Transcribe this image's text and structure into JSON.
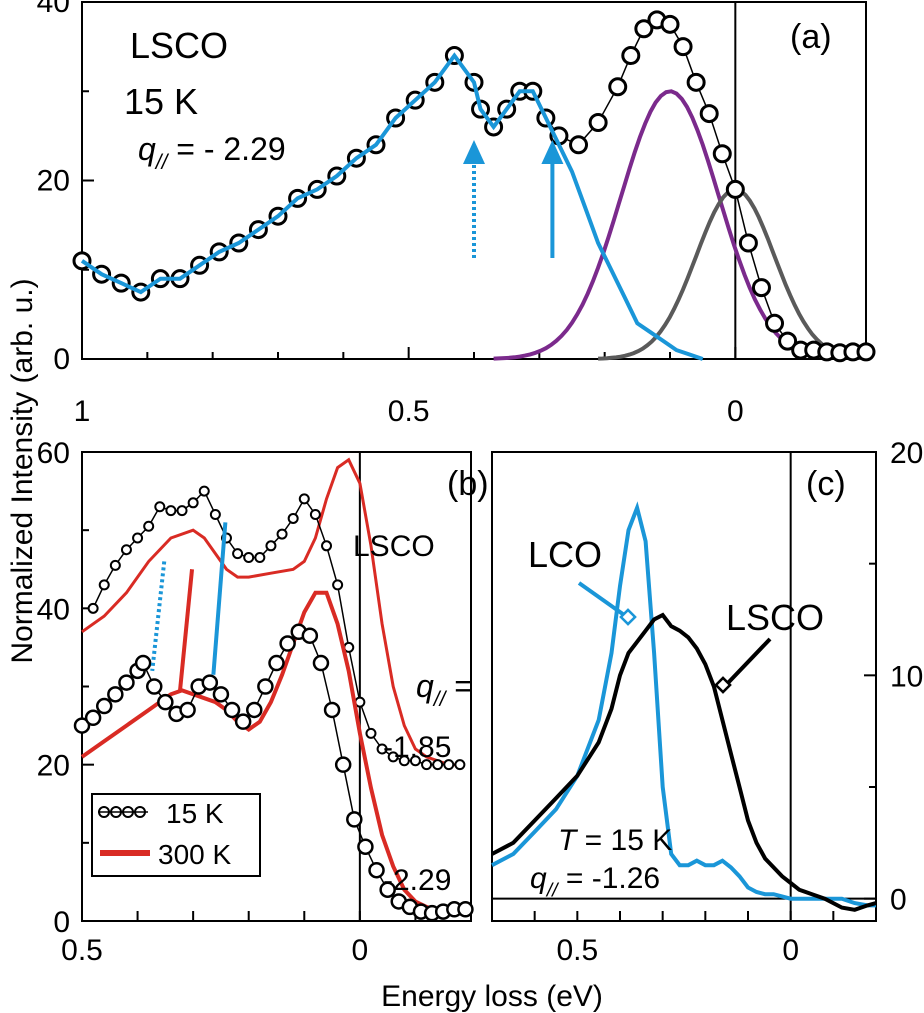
{
  "figure": {
    "ylabel": "Normalized Intensity (arb. u.)",
    "xlabel": "Energy loss (eV)"
  },
  "colors": {
    "blue": "#1a96d8",
    "purple": "#7b2a8c",
    "gray": "#5a5a5a",
    "red": "#d92b24",
    "black": "#000000"
  },
  "chart_data": [
    {
      "id": "a",
      "type": "line",
      "panel_label": "(a)",
      "title_lines": [
        "LSCO",
        "15 K"
      ],
      "q_label": "q",
      "q_sub": "//",
      "q_value": "= - 2.29",
      "xlim": [
        1.0,
        -0.2
      ],
      "ylim": [
        0,
        40
      ],
      "xticks": [
        {
          "v": 1,
          "t": "1"
        },
        {
          "v": 0.5,
          "t": "0.5"
        },
        {
          "v": 0,
          "t": "0"
        }
      ],
      "yticks": [
        {
          "v": 0,
          "t": "0"
        },
        {
          "v": 20,
          "t": "20"
        },
        {
          "v": 40,
          "t": "40"
        }
      ],
      "series": [
        {
          "name": "15 K data",
          "style": "circles",
          "x": [
            1.0,
            0.97,
            0.94,
            0.91,
            0.88,
            0.85,
            0.82,
            0.79,
            0.76,
            0.73,
            0.7,
            0.67,
            0.64,
            0.61,
            0.58,
            0.55,
            0.52,
            0.49,
            0.46,
            0.43,
            0.4,
            0.39,
            0.37,
            0.35,
            0.33,
            0.31,
            0.29,
            0.27,
            0.24,
            0.21,
            0.18,
            0.16,
            0.14,
            0.12,
            0.1,
            0.08,
            0.06,
            0.04,
            0.02,
            0.0,
            -0.02,
            -0.04,
            -0.06,
            -0.08,
            -0.1,
            -0.12,
            -0.14,
            -0.16,
            -0.18,
            -0.2
          ],
          "y": [
            11,
            9.5,
            8.5,
            7.5,
            9,
            9,
            10.5,
            12,
            13,
            14.5,
            16,
            18,
            19,
            20.5,
            22.5,
            24,
            27,
            29,
            31,
            34,
            31,
            28,
            26,
            28,
            30,
            30,
            27,
            25,
            24,
            26.5,
            30.5,
            34,
            37,
            38,
            37.5,
            35,
            31,
            27.5,
            23,
            19,
            13,
            8,
            4,
            2,
            1,
            1,
            0.8,
            0.7,
            0.8,
            0.8
          ]
        },
        {
          "name": "fit blue",
          "style": "line",
          "color": "blue",
          "x": [
            1.0,
            0.97,
            0.94,
            0.91,
            0.88,
            0.85,
            0.82,
            0.79,
            0.76,
            0.73,
            0.7,
            0.67,
            0.64,
            0.61,
            0.58,
            0.55,
            0.52,
            0.49,
            0.46,
            0.43,
            0.4,
            0.39,
            0.37,
            0.35,
            0.33,
            0.31,
            0.29,
            0.27,
            0.25,
            0.23,
            0.21,
            0.19,
            0.17,
            0.15,
            0.13,
            0.11,
            0.09,
            0.07,
            0.05
          ],
          "y": [
            11,
            9.5,
            8.5,
            7.5,
            9,
            9,
            10.5,
            12,
            13,
            14.5,
            16,
            18,
            19,
            20.5,
            22.5,
            24,
            27,
            29,
            31,
            34,
            31,
            28,
            26,
            28,
            30,
            30,
            27,
            24,
            21,
            17,
            13,
            10,
            7,
            4,
            3,
            2,
            1,
            0.5,
            0
          ]
        },
        {
          "name": "fit purple",
          "style": "line",
          "color": "purple",
          "gauss": {
            "a": 30,
            "mu": 0.1,
            "s": 0.075
          },
          "x0": 0.37,
          "x1": -0.11
        },
        {
          "name": "fit gray",
          "style": "line",
          "color": "gray",
          "gauss": {
            "a": 19,
            "mu": 0.0,
            "s": 0.06
          },
          "x0": 0.21,
          "x1": -0.2
        }
      ],
      "arrows": [
        {
          "x": 0.4,
          "dotted": true
        },
        {
          "x": 0.28,
          "dotted": false
        }
      ]
    },
    {
      "id": "b",
      "type": "line",
      "panel_label": "(b)",
      "sample_label": "LSCO",
      "q_label": "q",
      "q_sub": "//",
      "q_eq": "=",
      "q_values": [
        "-1.85",
        "-2.29"
      ],
      "xlim": [
        0.5,
        -0.2
      ],
      "ylim": [
        0,
        60
      ],
      "xticks": [
        {
          "v": 0.5,
          "t": "0.5"
        },
        {
          "v": 0,
          "t": "0"
        }
      ],
      "yticks": [
        {
          "v": 0,
          "t": "0"
        },
        {
          "v": 20,
          "t": "20"
        },
        {
          "v": 40,
          "t": "40"
        },
        {
          "v": 60,
          "t": "60"
        }
      ],
      "legend": [
        {
          "label": "15 K",
          "style": "circles"
        },
        {
          "label": "300 K",
          "style": "line",
          "color": "red"
        }
      ],
      "series": [
        {
          "name": "15 K q=-1.85",
          "style": "circles",
          "x": [
            0.48,
            0.46,
            0.44,
            0.42,
            0.4,
            0.38,
            0.36,
            0.34,
            0.32,
            0.3,
            0.28,
            0.26,
            0.24,
            0.22,
            0.2,
            0.18,
            0.16,
            0.14,
            0.12,
            0.1,
            0.08,
            0.06,
            0.04,
            0.02,
            0.0,
            -0.02,
            -0.04,
            -0.06,
            -0.08,
            -0.1,
            -0.12,
            -0.14,
            -0.16,
            -0.18
          ],
          "y": [
            40,
            43,
            45.5,
            47.5,
            49,
            50.5,
            53,
            52.5,
            52.5,
            53.5,
            55,
            52,
            49,
            47,
            46.5,
            46.5,
            48,
            49.5,
            51.5,
            54,
            52,
            48,
            43,
            35,
            28,
            24,
            22,
            21,
            20.5,
            20.5,
            20,
            20,
            20,
            20
          ]
        },
        {
          "name": "300 K q=-1.85",
          "style": "line",
          "color": "red",
          "x": [
            0.5,
            0.46,
            0.42,
            0.38,
            0.34,
            0.3,
            0.28,
            0.26,
            0.24,
            0.22,
            0.2,
            0.16,
            0.12,
            0.1,
            0.08,
            0.06,
            0.04,
            0.02,
            0.0,
            -0.02,
            -0.04,
            -0.06,
            -0.08,
            -0.1,
            -0.12,
            -0.14,
            -0.16,
            -0.18
          ],
          "y": [
            37,
            39,
            42,
            46,
            49,
            50,
            49,
            47,
            45,
            44,
            44,
            44.5,
            45,
            46,
            49,
            54,
            58,
            59,
            56,
            48,
            38,
            30,
            25,
            22,
            21,
            20.5,
            20,
            20
          ]
        },
        {
          "name": "15 K q=-2.29",
          "style": "circles",
          "x": [
            0.5,
            0.48,
            0.46,
            0.44,
            0.42,
            0.4,
            0.39,
            0.37,
            0.35,
            0.33,
            0.31,
            0.29,
            0.27,
            0.25,
            0.23,
            0.21,
            0.19,
            0.17,
            0.15,
            0.13,
            0.11,
            0.09,
            0.07,
            0.05,
            0.03,
            0.01,
            -0.01,
            -0.03,
            -0.05,
            -0.07,
            -0.09,
            -0.11,
            -0.13,
            -0.15,
            -0.17,
            -0.19
          ],
          "y": [
            25,
            26,
            27.5,
            29,
            30.5,
            32,
            33,
            30,
            28,
            26.5,
            27,
            30,
            30.5,
            29,
            27,
            25.5,
            27,
            30,
            33,
            35.5,
            37,
            36.5,
            33,
            27,
            20,
            13,
            9.5,
            6.5,
            4,
            2.5,
            1.8,
            1.2,
            1,
            1.2,
            1.5,
            1.5
          ]
        },
        {
          "name": "300 K q=-2.29",
          "style": "line",
          "color": "red",
          "x": [
            0.5,
            0.46,
            0.42,
            0.38,
            0.34,
            0.32,
            0.3,
            0.28,
            0.26,
            0.24,
            0.22,
            0.2,
            0.18,
            0.16,
            0.14,
            0.12,
            0.1,
            0.08,
            0.06,
            0.04,
            0.02,
            0.0,
            -0.02,
            -0.04,
            -0.06,
            -0.08,
            -0.1,
            -0.12,
            -0.14,
            -0.16,
            -0.18
          ],
          "y": [
            21,
            23,
            25,
            27,
            29,
            29.5,
            29,
            28.5,
            28,
            27,
            25.5,
            24.5,
            25.5,
            28,
            31.5,
            35.5,
            39.5,
            42,
            42,
            38,
            32,
            24,
            17,
            11,
            7,
            4,
            2.5,
            1.8,
            1.2,
            1,
            1
          ]
        }
      ],
      "markers": [
        {
          "x": 0.37,
          "y0": 46,
          "y1": 32,
          "color": "blue",
          "dotted": true
        },
        {
          "x": 0.32,
          "y0": 45,
          "y1": 29.5,
          "color": "red",
          "dotted": false
        },
        {
          "x": 0.26,
          "y0": 51,
          "y1": 31.5,
          "color": "blue",
          "dotted": false
        }
      ]
    },
    {
      "id": "c",
      "type": "line",
      "panel_label": "(c)",
      "labels": [
        "LCO",
        "LSCO"
      ],
      "temp_label": "T",
      "temp_value": "= 15 K",
      "q_label": "q",
      "q_sub": "//",
      "q_value": "= -1.26",
      "xlim": [
        0.7,
        -0.2
      ],
      "ylim": [
        -1,
        20
      ],
      "xticks": [
        {
          "v": 0.5,
          "t": "0.5"
        },
        {
          "v": 0,
          "t": "0"
        }
      ],
      "yticks": [
        {
          "v": 0,
          "t": "0"
        },
        {
          "v": 10,
          "t": "10"
        },
        {
          "v": 20,
          "t": "20"
        }
      ],
      "series": [
        {
          "name": "LCO",
          "style": "line",
          "color": "blue",
          "x": [
            0.7,
            0.65,
            0.6,
            0.55,
            0.5,
            0.45,
            0.42,
            0.4,
            0.38,
            0.36,
            0.34,
            0.32,
            0.3,
            0.28,
            0.26,
            0.24,
            0.22,
            0.2,
            0.18,
            0.16,
            0.14,
            0.12,
            0.1,
            0.08,
            0.06,
            0.04,
            0.02,
            0.0,
            -0.02,
            -0.05,
            -0.08,
            -0.1,
            -0.12,
            -0.15,
            -0.18,
            -0.2
          ],
          "y": [
            1.5,
            2,
            3,
            4,
            5.5,
            8,
            11,
            14,
            16.5,
            17.5,
            16,
            11,
            5,
            2,
            1.5,
            1.5,
            1.7,
            1.5,
            1.5,
            1.7,
            1.4,
            1,
            0.5,
            0.3,
            0.2,
            0.2,
            0.1,
            0,
            0,
            0,
            0,
            0,
            0,
            -0.2,
            -0.3,
            -0.3
          ]
        },
        {
          "name": "LSCO",
          "style": "line",
          "color": "black",
          "x": [
            0.7,
            0.65,
            0.6,
            0.55,
            0.5,
            0.45,
            0.42,
            0.4,
            0.38,
            0.36,
            0.34,
            0.32,
            0.3,
            0.28,
            0.26,
            0.24,
            0.22,
            0.2,
            0.18,
            0.16,
            0.14,
            0.12,
            0.1,
            0.08,
            0.06,
            0.04,
            0.02,
            0.0,
            -0.02,
            -0.05,
            -0.08,
            -0.1,
            -0.12,
            -0.15,
            -0.18,
            -0.2
          ],
          "y": [
            2,
            2.5,
            3.5,
            4.5,
            5.5,
            7,
            8.5,
            10,
            11,
            11.5,
            12,
            12.5,
            12.7,
            12.2,
            12,
            11.7,
            11.2,
            10.5,
            9.5,
            8,
            6.5,
            5,
            3.5,
            2.5,
            1.8,
            1.4,
            1,
            0.7,
            0.4,
            0.2,
            0,
            -0.2,
            -0.4,
            -0.5,
            -0.3,
            -0.2
          ]
        }
      ]
    }
  ]
}
